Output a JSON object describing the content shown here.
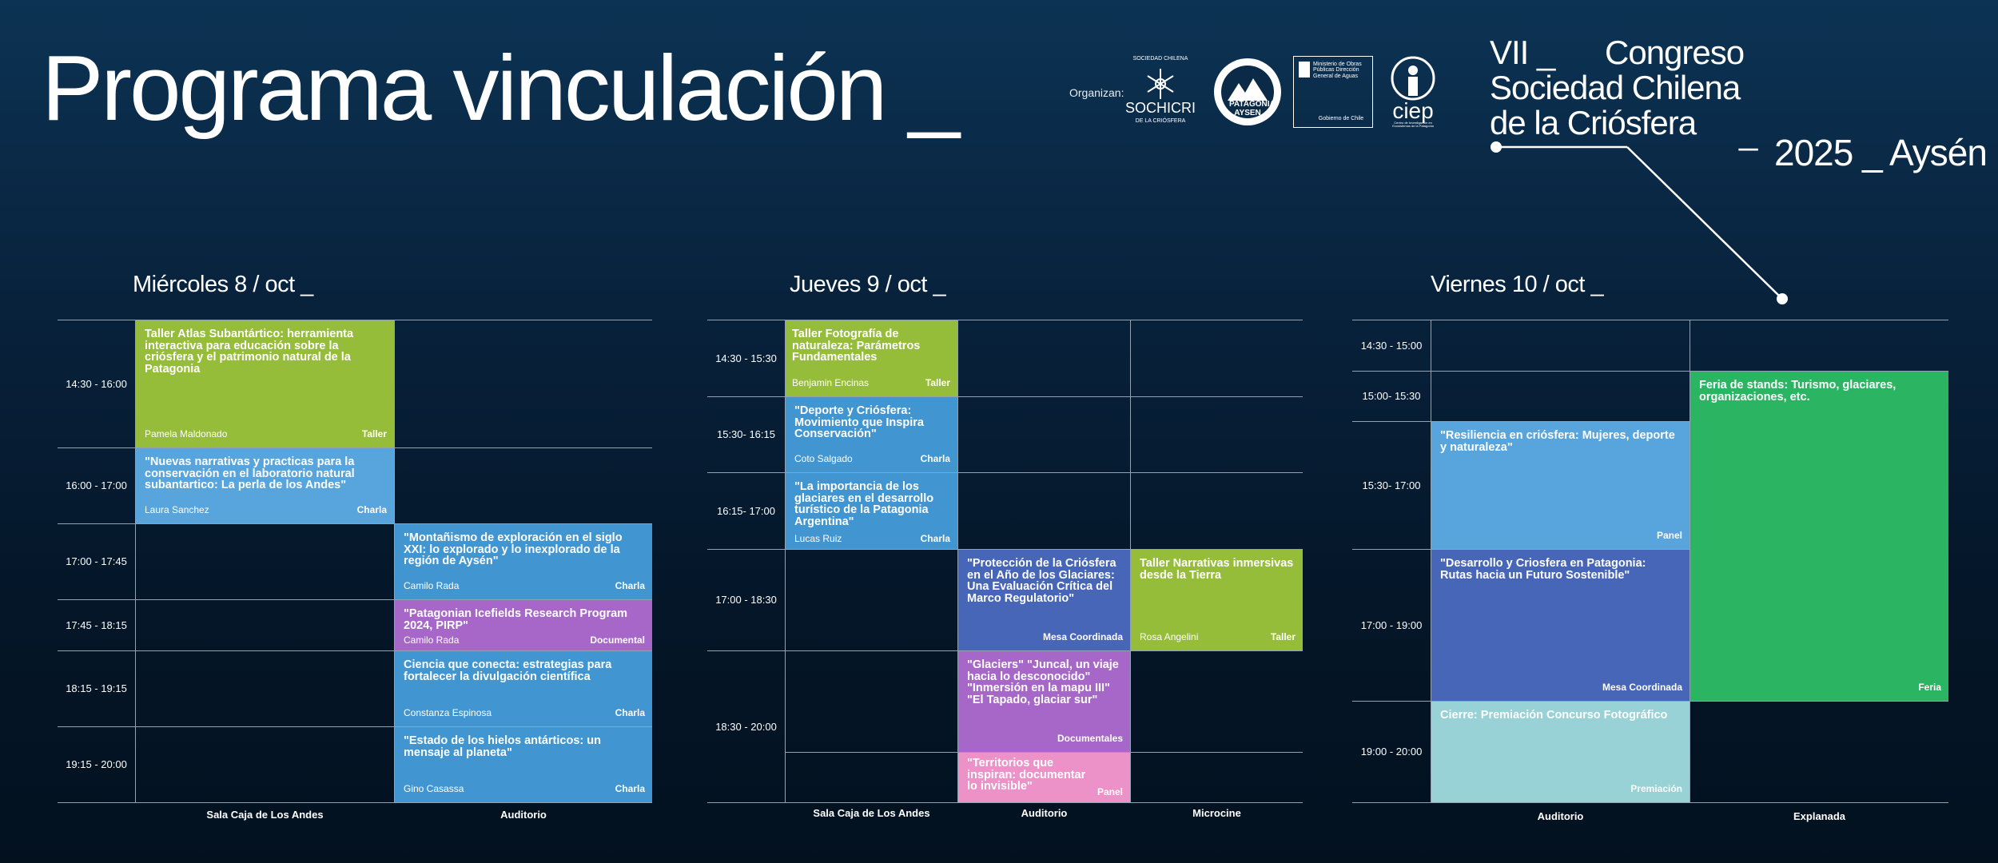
{
  "header": {
    "title": "Programa vinculación _",
    "organizan_label": "Organizan:",
    "logos": {
      "sochicri_top": "SOCIEDAD CHILENA",
      "sochicri_name": "SOCHICRI",
      "sochicri_bottom": "DE LA CRIÓSFERA",
      "patagonia_name": "PATAGONIA AYSEN",
      "ministerio": "Ministerio de Obras Públicas Dirección General de Aguas",
      "gobierno": "Gobierno de Chile",
      "ciep": "ciep",
      "ciep_sub": "Centro de Investigación en Ecosistemas de la Patagonia"
    },
    "congress": {
      "line1_a": "VII _",
      "line1_b": "Congreso",
      "line2": "Sociedad Chilena",
      "line3": "de la Criósfera",
      "dash": "_",
      "year": "2025 _ Aysén"
    }
  },
  "days": {
    "wed": {
      "title": "Miércoles 8 / oct _",
      "columns": [
        "Sala Caja de Los Andes",
        "Auditorio"
      ],
      "times": [
        "14:30 - 16:00",
        "16:00 - 17:00",
        "17:00 - 17:45",
        "17:45 - 18:15",
        "18:15 - 19:15",
        "19:15 - 20:00"
      ],
      "events": {
        "e1": {
          "title": "Taller Atlas Subantártico: herramienta interactiva para educación sobre la criósfera y el patrimonio natural de la Patagonia",
          "speaker": "Pamela Maldonado",
          "type": "Taller"
        },
        "e2": {
          "title": "\"Nuevas narrativas y practicas para la conservación en el laboratorio natural subantartico: La perla de los Andes\"",
          "speaker": "Laura Sanchez",
          "type": "Charla"
        },
        "e3": {
          "title": "\"Montañismo de exploración en el siglo XXI: lo explorado y lo inexplorado de la región de Aysén\"",
          "speaker": "Camilo Rada",
          "type": "Charla"
        },
        "e4": {
          "title": "\"Patagonian Icefields Research Program 2024, PIRP\"",
          "speaker": "Camilo Rada",
          "type": "Documental"
        },
        "e5": {
          "title": "Ciencia que conecta: estrategias para fortalecer la divulgación científica",
          "speaker": "Constanza Espinosa",
          "type": "Charla"
        },
        "e6": {
          "title": "\"Estado de los hielos antárticos: un mensaje al planeta\"",
          "speaker": "Gino Casassa",
          "type": "Charla"
        }
      }
    },
    "thu": {
      "title": "Jueves 9 / oct _",
      "columns": [
        "Sala Caja de Los Andes",
        "Auditorio",
        "Microcine"
      ],
      "times": [
        "14:30 - 15:30",
        "15:30- 16:15",
        "16:15- 17:00",
        "17:00 - 18:30",
        "18:30 - 20:00"
      ],
      "events": {
        "e1": {
          "title": "Taller Fotografía de naturaleza: Parámetros Fundamentales",
          "speaker": "Benjamin Encinas",
          "type": "Taller"
        },
        "e2": {
          "title": "\"Deporte y Criósfera: Movimiento que Inspira Conservación\"",
          "speaker": "Coto Salgado",
          "type": "Charla"
        },
        "e3": {
          "title": "\"La importancia de los glaciares en el desarrollo turístico de la Patagonia Argentina\"",
          "speaker": "Lucas Ruiz",
          "type": "Charla"
        },
        "e4": {
          "title": "\"Protección de la Criósfera en el Año de los Glaciares: Una Evaluación Crítica del Marco Regulatorio\"",
          "speaker": "",
          "type": "Mesa Coordinada"
        },
        "e5": {
          "title": "Taller Narrativas inmersivas desde la Tierra",
          "speaker": "Rosa Angelini",
          "type": "Taller"
        },
        "e6": {
          "title": "\"Glaciers\" \"Juncal, un viaje hacia lo desconocido\" \"Inmersión en la mapu III\" \"El Tapado, glaciar sur\"",
          "speaker": "",
          "type": "Documentales"
        },
        "e7": {
          "title": "\"Territorios que inspiran: documentar lo invisible\"",
          "speaker": "",
          "type": "Panel"
        }
      }
    },
    "fri": {
      "title": "Viernes 10 / oct _",
      "columns": [
        "Auditorio",
        "Explanada"
      ],
      "times": [
        "14:30 - 15:00",
        "15:00- 15:30",
        "15:30- 17:00",
        "17:00 - 19:00",
        "19:00 - 20:00"
      ],
      "events": {
        "e1": {
          "title": "Feria de stands: Turismo, glaciares, organizaciones, etc.",
          "speaker": "",
          "type": "Feria"
        },
        "e2": {
          "title": "\"Resiliencia en criósfera: Mujeres, deporte y naturaleza\"",
          "speaker": "",
          "type": "Panel"
        },
        "e3": {
          "title": "\"Desarrollo y Criosfera en Patagonia: Rutas hacia un Futuro Sostenible\"",
          "speaker": "",
          "type": "Mesa Coordinada"
        },
        "e4": {
          "title": "Cierre: Premiación Concurso Fotográfico",
          "speaker": "",
          "type": "Premiación"
        }
      }
    }
  },
  "colors": {
    "taller_green": "#96bd3a",
    "charla_blue": "#4196d1",
    "light_blue": "#57a5dc",
    "documental_purple": "#a667c8",
    "mesa_indigo": "#4866b8",
    "panel_pink": "#ec92c8",
    "feria_green": "#2bb563",
    "premiacion_teal": "#98d1d6"
  }
}
